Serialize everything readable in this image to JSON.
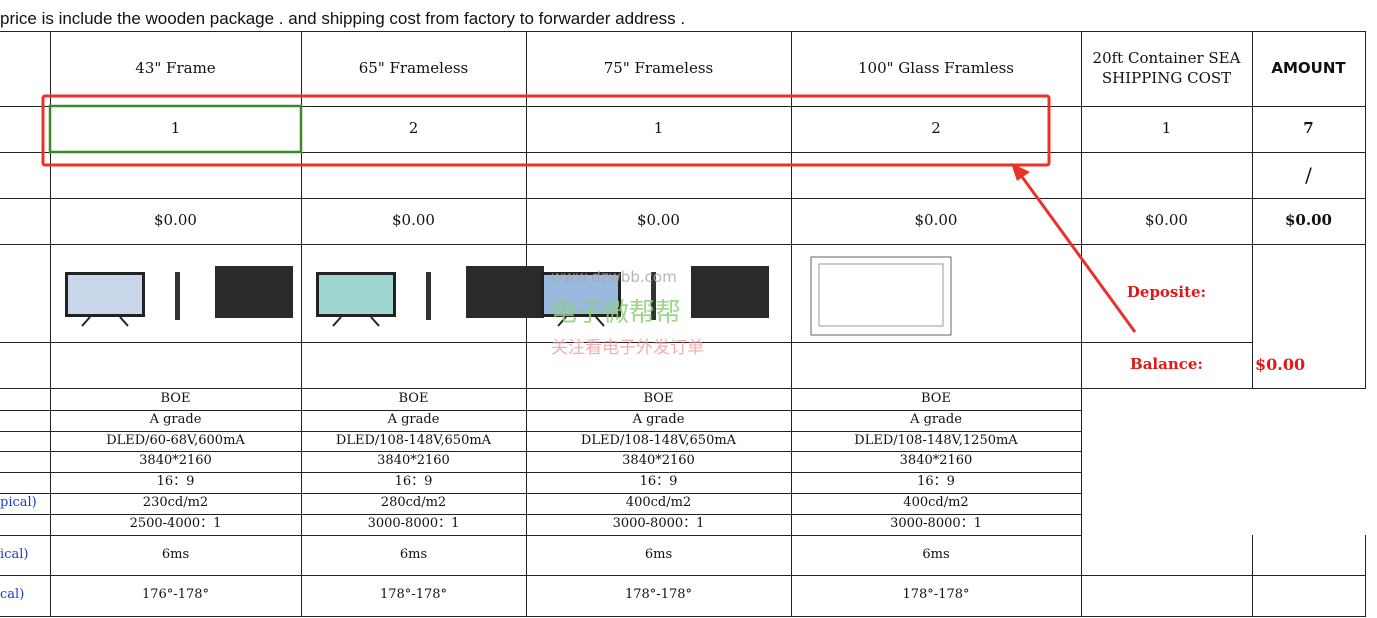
{
  "note": "price is include the wooden package . and shipping cost from factory to forwarder address .",
  "headers": [
    "43\"  Frame",
    "65\"  Frameless",
    "75\"  Frameless",
    "100\" Glass Framless",
    "20ft Container SEA SHIPPING COST",
    "AMOUNT"
  ],
  "quantities": [
    "1",
    "2",
    "1",
    "2",
    "1",
    "7"
  ],
  "blank_row_amount": "/",
  "prices": [
    "$0.00",
    "$0.00",
    "$0.00",
    "$0.00",
    "$0.00",
    "$0.00"
  ],
  "deposit_label": "Deposite:",
  "balance_label": "Balance:",
  "balance": "$0.00",
  "watermark": [
    "www.dzwbb.com",
    "电子微帮帮",
    "关注看电子外发订单"
  ],
  "specs": [
    [
      "BOE",
      "BOE",
      "BOE",
      "BOE"
    ],
    [
      "A grade",
      "A grade",
      "A grade",
      "A grade"
    ],
    [
      "DLED/60-68V,600mA",
      "DLED/108-148V,650mA",
      "DLED/108-148V,650mA",
      "DLED/108-148V,1250mA"
    ],
    [
      "3840*2160",
      "3840*2160",
      "3840*2160",
      "3840*2160"
    ],
    [
      "16：9",
      "16：9",
      "16：9",
      "16：9"
    ],
    [
      "230cd/m2",
      "280cd/m2",
      "400cd/m2",
      "400cd/m2"
    ],
    [
      "2500-4000：1",
      "3000-8000：1",
      "3000-8000：1",
      "3000-8000：1"
    ],
    [
      "6ms",
      "6ms",
      "6ms",
      "6ms"
    ],
    [
      "176°-178°",
      "178°-178°",
      "178°-178°",
      "178°-178°"
    ]
  ],
  "spec_side_labels": [
    null,
    null,
    null,
    null,
    null,
    "pical)",
    null,
    "ical)",
    "cal)"
  ]
}
